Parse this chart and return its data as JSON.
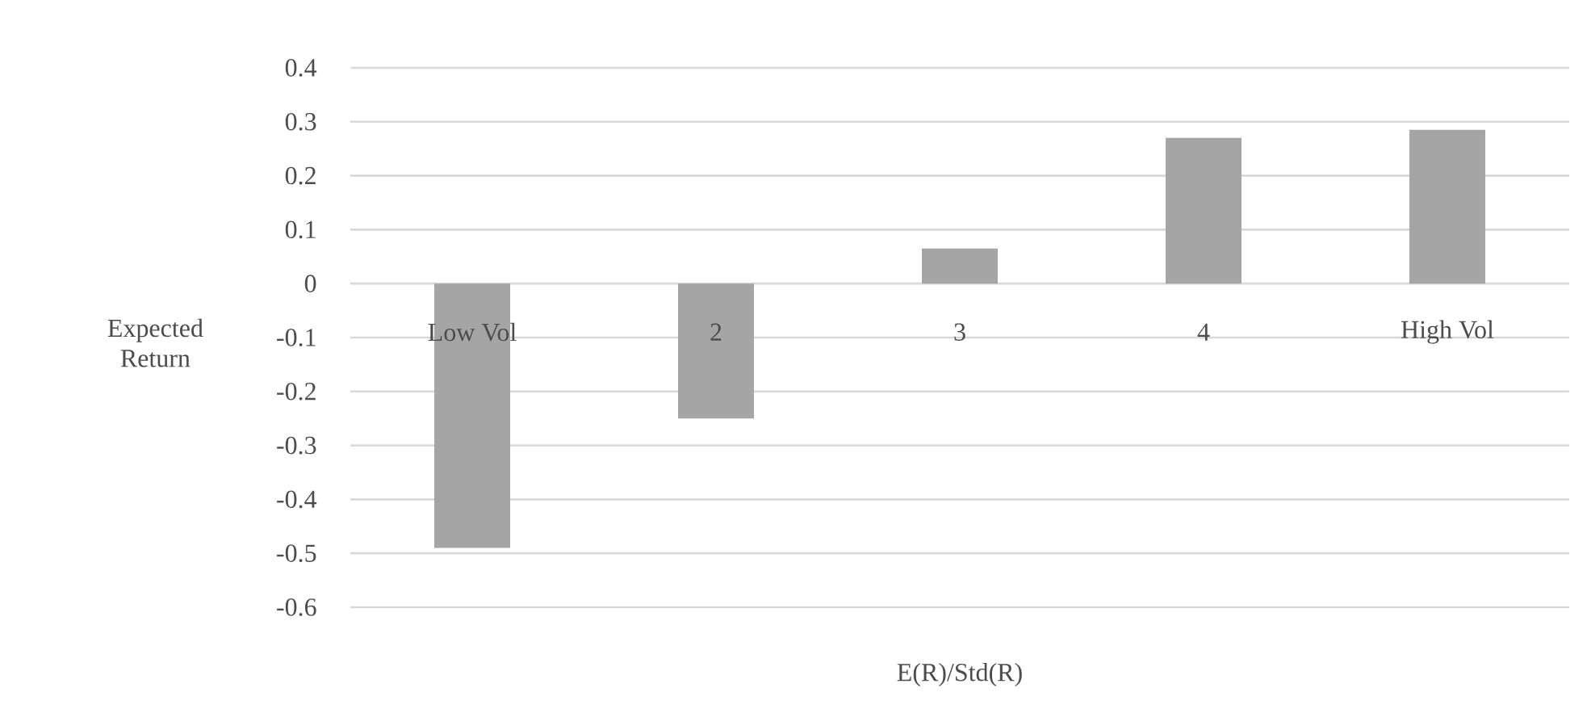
{
  "chart_data": {
    "type": "bar",
    "xlabel": "E(R)/Std(R)",
    "ylabel": "Expected Return",
    "categories": [
      "Low Vol",
      "2",
      "3",
      "4",
      "High Vol"
    ],
    "values": [
      -0.49,
      -0.25,
      0.065,
      0.27,
      0.285
    ],
    "color": "#a5a5a5",
    "ylim": [
      -0.6,
      0.4
    ],
    "yticks": [
      {
        "value": -0.6,
        "label": "-0.6"
      },
      {
        "value": -0.5,
        "label": "-0.5"
      },
      {
        "value": -0.4,
        "label": "-0.4"
      },
      {
        "value": -0.3,
        "label": "-0.3"
      },
      {
        "value": -0.2,
        "label": "-0.2"
      },
      {
        "value": -0.1,
        "label": "-0.1"
      },
      0,
      {
        "value": 0.1,
        "label": "0.1"
      },
      {
        "value": 0.2,
        "label": "0.2"
      },
      {
        "value": 0.3,
        "label": "0.3"
      },
      {
        "value": 0.4,
        "label": "0.4"
      }
    ],
    "grid": "y"
  }
}
